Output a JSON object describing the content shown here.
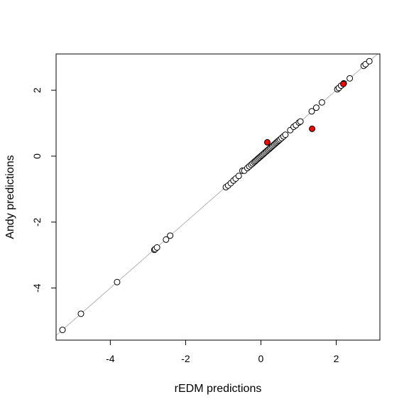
{
  "chart_data": {
    "type": "scatter",
    "title": "",
    "xlabel": "rEDM predictions",
    "ylabel": "Andy predictions",
    "xlim": [
      -5.44,
      3.16
    ],
    "ylim": [
      -5.58,
      3.1
    ],
    "xticks": [
      -4,
      -2,
      0,
      2
    ],
    "yticks": [
      -4,
      -2,
      0,
      2
    ],
    "xtick_labels": [
      "-4",
      "-2",
      "0",
      "2"
    ],
    "ytick_labels": [
      "-4",
      "-2",
      "0",
      "2"
    ],
    "grid": false,
    "reference_line": {
      "slope": 1,
      "intercept": 0,
      "color": "#b3b3b3"
    },
    "colors": {
      "point_fill": "#ffffff",
      "point_stroke": "#000000",
      "highlight_fill": "#ff0000"
    },
    "points": [
      [
        -5.27,
        -5.27
      ],
      [
        -4.78,
        -4.78
      ],
      [
        -3.82,
        -3.82
      ],
      [
        -2.83,
        -2.84
      ],
      [
        -2.81,
        -2.82
      ],
      [
        -2.76,
        -2.77
      ],
      [
        -2.52,
        -2.53
      ],
      [
        -2.41,
        -2.41
      ],
      [
        -0.93,
        -0.94
      ],
      [
        -0.87,
        -0.89
      ],
      [
        -0.8,
        -0.82
      ],
      [
        -0.73,
        -0.74
      ],
      [
        -0.67,
        -0.68
      ],
      [
        -0.59,
        -0.6
      ],
      [
        -0.49,
        -0.44
      ],
      [
        -0.44,
        -0.44
      ],
      [
        -0.36,
        -0.36
      ],
      [
        -0.31,
        -0.31
      ],
      [
        -0.26,
        -0.26
      ],
      [
        -0.22,
        -0.22
      ],
      [
        -0.18,
        -0.18
      ],
      [
        -0.15,
        -0.15
      ],
      [
        -0.12,
        -0.12
      ],
      [
        -0.09,
        -0.09
      ],
      [
        -0.06,
        -0.06
      ],
      [
        -0.03,
        -0.03
      ],
      [
        0.0,
        0.0
      ],
      [
        0.03,
        0.03
      ],
      [
        0.06,
        0.06
      ],
      [
        0.09,
        0.09
      ],
      [
        0.12,
        0.12
      ],
      [
        0.15,
        0.15
      ],
      [
        0.18,
        0.18
      ],
      [
        0.21,
        0.21
      ],
      [
        0.24,
        0.24
      ],
      [
        0.27,
        0.27
      ],
      [
        0.3,
        0.3
      ],
      [
        0.33,
        0.33
      ],
      [
        0.36,
        0.36
      ],
      [
        0.39,
        0.39
      ],
      [
        0.42,
        0.42
      ],
      [
        0.45,
        0.45
      ],
      [
        0.48,
        0.48
      ],
      [
        0.51,
        0.51
      ],
      [
        0.55,
        0.55
      ],
      [
        0.6,
        0.6
      ],
      [
        0.65,
        0.65
      ],
      [
        0.78,
        0.79
      ],
      [
        0.87,
        0.89
      ],
      [
        0.93,
        0.94
      ],
      [
        1.01,
        1.02
      ],
      [
        1.05,
        1.05
      ],
      [
        1.35,
        1.36
      ],
      [
        1.47,
        1.47
      ],
      [
        1.62,
        1.63
      ],
      [
        2.03,
        2.03
      ],
      [
        2.07,
        2.07
      ],
      [
        2.13,
        2.14
      ],
      [
        2.2,
        2.21
      ],
      [
        2.36,
        2.36
      ],
      [
        2.73,
        2.74
      ],
      [
        2.78,
        2.79
      ],
      [
        2.88,
        2.88
      ]
    ],
    "highlighted_points": [
      [
        0.17,
        0.42
      ],
      [
        1.36,
        0.83
      ],
      [
        2.19,
        2.19
      ]
    ]
  }
}
